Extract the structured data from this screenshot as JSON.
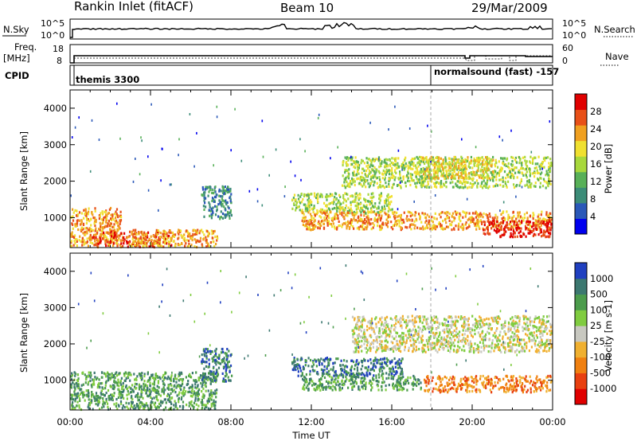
{
  "header": {
    "station": "Rankin Inlet (fitACF)",
    "beam": "Beam 10",
    "date": "29/Mar/2009"
  },
  "strip": {
    "nsky_label": "N.Sky",
    "nsky_ticks": [
      "10^5",
      "10^0"
    ],
    "nsearch_label": "N.Search",
    "nsearch_ticks": [
      "10^5",
      "10^0"
    ],
    "freq_label_1": "Freq.",
    "freq_label_2": "[MHz]",
    "freq_ticks": [
      "18",
      "8"
    ],
    "nave_label": "Nave",
    "nave_ticks": [
      "60",
      "0"
    ],
    "cpid_label": "CPID",
    "cpid_modes": [
      "themis 3300",
      "normalsound (fast) -157"
    ]
  },
  "x_axis": {
    "ticks": [
      "00:00",
      "04:00",
      "08:00",
      "12:00",
      "16:00",
      "20:00",
      "00:00"
    ],
    "label": "Time UT"
  },
  "power_panel": {
    "ylabel": "Slant Range [km]",
    "yticks": [
      "1000",
      "2000",
      "3000",
      "4000"
    ],
    "colorbar_label": "Power [dB]",
    "colorbar_ticks": [
      "4",
      "8",
      "12",
      "16",
      "20",
      "24",
      "28"
    ],
    "colors": [
      "#0000ee",
      "#2a58b8",
      "#3c8c78",
      "#58b058",
      "#a8d83c",
      "#f0e030",
      "#f0a020",
      "#e85018",
      "#e00000"
    ]
  },
  "velocity_panel": {
    "ylabel": "Slant Range [km]",
    "yticks": [
      "1000",
      "2000",
      "3000",
      "4000"
    ],
    "colorbar_label": "Velocity [m s-1]",
    "colorbar_ticks": [
      "1000",
      "500",
      "100",
      "25",
      "-25",
      "-100",
      "-500",
      "-1000"
    ],
    "colors": [
      "#2040c0",
      "#3c7870",
      "#4c9c4c",
      "#80cc40",
      "#c8c8c0",
      "#f0b030",
      "#f08010",
      "#e84010",
      "#e00000"
    ]
  },
  "chart_data": {
    "type": "heatmap",
    "title": "Rankin Inlet (fitACF)",
    "x_range": [
      "00:00",
      "00:00"
    ],
    "ylim": [
      180,
      4500
    ],
    "panels": [
      {
        "name": "Power [dB]",
        "scale_ticks": [
          4,
          8,
          12,
          16,
          20,
          24,
          28
        ],
        "scatter_regions": [
          {
            "t0": 0.0,
            "t1": 2.5,
            "r0": 250,
            "r1": 1300,
            "level": 6
          },
          {
            "t0": 1.0,
            "t1": 5.0,
            "r0": 200,
            "r1": 650,
            "level": 7
          },
          {
            "t0": 3.0,
            "t1": 7.3,
            "r0": 200,
            "r1": 700,
            "level": 6
          },
          {
            "t0": 6.5,
            "t1": 8.0,
            "r0": 1000,
            "r1": 1900,
            "level": 2
          },
          {
            "t0": 11.0,
            "t1": 16.0,
            "r0": 1150,
            "r1": 1700,
            "level": 4
          },
          {
            "t0": 11.5,
            "t1": 24.0,
            "r0": 700,
            "r1": 1200,
            "level": 6
          },
          {
            "t0": 20.5,
            "t1": 24.0,
            "r0": 500,
            "r1": 950,
            "level": 8
          },
          {
            "t0": 13.5,
            "t1": 24.0,
            "r0": 1850,
            "r1": 2700,
            "level": 4
          },
          {
            "t0": 17.5,
            "t1": 21.0,
            "r0": 2100,
            "r1": 2700,
            "level": 5
          }
        ]
      },
      {
        "name": "Velocity [m s-1]",
        "scale_ticks": [
          1000,
          500,
          100,
          25,
          -25,
          -100,
          -500,
          -1000
        ],
        "scatter_regions": [
          {
            "t0": 0.0,
            "t1": 7.3,
            "r0": 200,
            "r1": 1250,
            "level": 2
          },
          {
            "t0": 6.5,
            "t1": 8.0,
            "r0": 1000,
            "r1": 1900,
            "level": 1
          },
          {
            "t0": 11.0,
            "t1": 16.5,
            "r0": 1150,
            "r1": 1650,
            "level": 1
          },
          {
            "t0": 11.5,
            "t1": 17.5,
            "r0": 750,
            "r1": 1150,
            "level": 2
          },
          {
            "t0": 17.5,
            "t1": 24.0,
            "r0": 700,
            "r1": 1150,
            "level": 6
          },
          {
            "t0": 14.0,
            "t1": 24.0,
            "r0": 1800,
            "r1": 2800,
            "level": 4
          }
        ]
      }
    ]
  }
}
